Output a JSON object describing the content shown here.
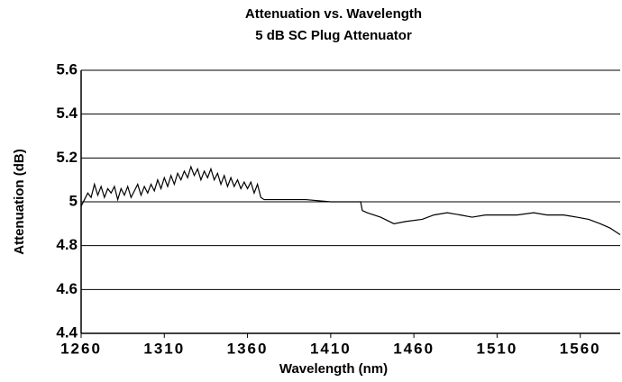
{
  "chart_data": {
    "type": "line",
    "title": "Attenuation vs. Wavelength",
    "subtitle": "5 dB SC Plug Attenuator",
    "x_label": "Wavelength  (nm)",
    "y_label": "Attenuation (dB)",
    "x": [
      1260,
      1262,
      1264,
      1266,
      1268,
      1270,
      1272,
      1274,
      1276,
      1278,
      1280,
      1282,
      1284,
      1286,
      1288,
      1290,
      1292,
      1294,
      1296,
      1298,
      1300,
      1302,
      1304,
      1306,
      1308,
      1310,
      1312,
      1314,
      1316,
      1318,
      1320,
      1322,
      1324,
      1326,
      1328,
      1330,
      1332,
      1334,
      1336,
      1338,
      1340,
      1342,
      1344,
      1346,
      1348,
      1350,
      1352,
      1354,
      1356,
      1358,
      1360,
      1362,
      1364,
      1366,
      1368,
      1370,
      1380,
      1395,
      1410,
      1428,
      1429,
      1432,
      1440,
      1448,
      1455,
      1465,
      1472,
      1480,
      1488,
      1495,
      1503,
      1515,
      1522,
      1532,
      1540,
      1550,
      1558,
      1565,
      1572,
      1578,
      1584
    ],
    "series": [
      {
        "name": "Attenuation",
        "color": "#000000",
        "values": [
          4.98,
          5.01,
          5.04,
          5.02,
          5.08,
          5.03,
          5.07,
          5.02,
          5.06,
          5.04,
          5.07,
          5.01,
          5.06,
          5.03,
          5.07,
          5.02,
          5.05,
          5.08,
          5.03,
          5.07,
          5.04,
          5.08,
          5.05,
          5.1,
          5.06,
          5.11,
          5.07,
          5.12,
          5.08,
          5.13,
          5.1,
          5.14,
          5.11,
          5.16,
          5.12,
          5.15,
          5.1,
          5.14,
          5.11,
          5.15,
          5.1,
          5.13,
          5.08,
          5.12,
          5.07,
          5.11,
          5.07,
          5.1,
          5.06,
          5.09,
          5.06,
          5.09,
          5.04,
          5.08,
          5.02,
          5.01,
          5.01,
          5.01,
          5.0,
          5.0,
          4.96,
          4.95,
          4.93,
          4.9,
          4.91,
          4.92,
          4.94,
          4.95,
          4.94,
          4.93,
          4.94,
          4.94,
          4.94,
          4.95,
          4.94,
          4.94,
          4.93,
          4.92,
          4.9,
          4.88,
          4.85
        ]
      }
    ],
    "xlim": [
      1260,
      1584
    ],
    "ylim": [
      4.4,
      5.6
    ],
    "xticks": [
      1260,
      1310,
      1360,
      1410,
      1460,
      1510,
      1560
    ],
    "yticks": [
      4.4,
      4.6,
      4.8,
      5,
      5.2,
      5.4,
      5.6
    ],
    "grid": true
  }
}
